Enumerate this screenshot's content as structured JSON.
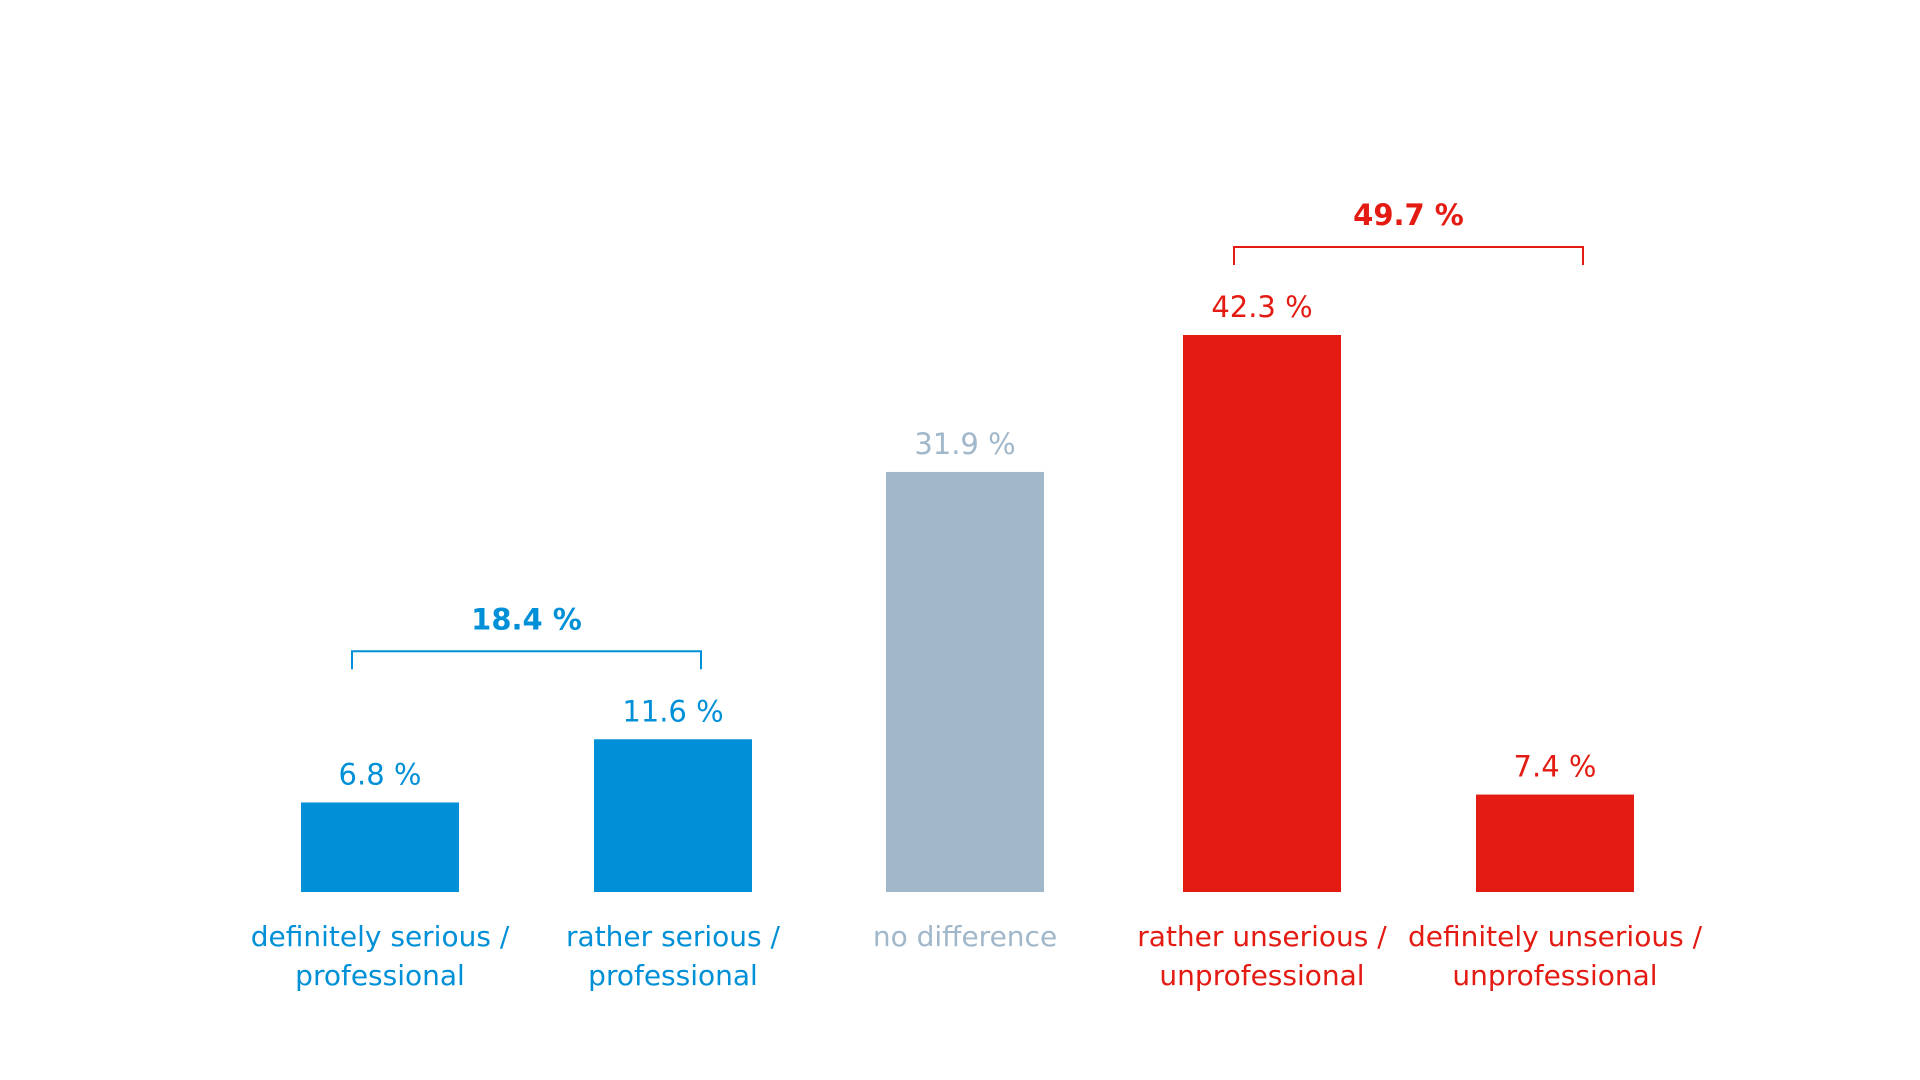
{
  "chart_data": {
    "type": "bar",
    "categories": [
      [
        "definitely serious /",
        "professional"
      ],
      [
        "rather serious /",
        "professional"
      ],
      [
        "no difference"
      ],
      [
        "rather unserious /",
        "unprofessional"
      ],
      [
        "definitely unserious /",
        "unprofessional"
      ]
    ],
    "values": [
      6.8,
      11.6,
      31.9,
      42.3,
      7.4
    ],
    "value_labels": [
      "6.8 %",
      "11.6 %",
      "31.9 %",
      "42.3 %",
      "7.4 %"
    ],
    "colors": [
      "#0090d7",
      "#0090d7",
      "#a1b7ca",
      "#e31b13",
      "#e31b13"
    ],
    "groups": [
      {
        "label": "18.4 %",
        "value": 18.4,
        "members": [
          0,
          1
        ],
        "color": "#0090d7"
      },
      {
        "label": "49.7 %",
        "value": 49.7,
        "members": [
          3,
          4
        ],
        "color": "#e31b13"
      }
    ],
    "ylim": [
      0,
      42.3
    ],
    "grid": false,
    "legend": "none"
  }
}
